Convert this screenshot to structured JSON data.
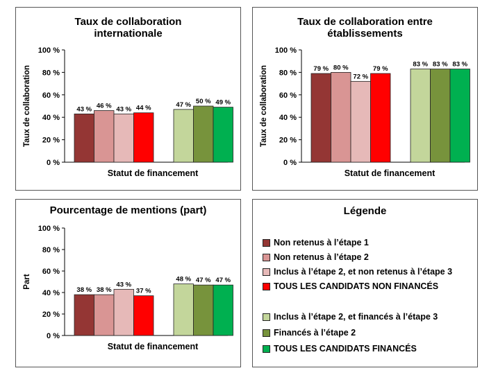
{
  "chart_data": [
    {
      "type": "bar",
      "title": "Taux de collaboration internationale",
      "title_lines": [
        "Taux de collaboration",
        "internationale"
      ],
      "xlabel": "Statut de financement",
      "ylabel": "Taux de collaboration",
      "ylim": [
        0,
        100
      ],
      "yticks": [
        "0 %",
        "20 %",
        "40 %",
        "60 %",
        "80 %",
        "100 %"
      ],
      "grid": false,
      "values": [
        43,
        46,
        43,
        44,
        47,
        50,
        49
      ],
      "data_labels": [
        "43 %",
        "46 %",
        "43 %",
        "44 %",
        "47 %",
        "50 %",
        "49 %"
      ]
    },
    {
      "type": "bar",
      "title": "Taux de collaboration entre établissements",
      "title_lines": [
        "Taux de collaboration  entre",
        "établissements"
      ],
      "xlabel": "Statut de financement",
      "ylabel": "Taux de collaboration",
      "ylim": [
        0,
        100
      ],
      "yticks": [
        "0 %",
        "20 %",
        "40 %",
        "60 %",
        "80 %",
        "100 %"
      ],
      "grid": false,
      "values": [
        79,
        80,
        72,
        79,
        83,
        83,
        83
      ],
      "data_labels": [
        "79 %",
        "80 %",
        "72 %",
        "79 %",
        "83 %",
        "83 %",
        "83 %"
      ]
    },
    {
      "type": "bar",
      "title": "Pourcentage de mentions (part)",
      "title_lines": [
        "Pourcentage de mentions (part)"
      ],
      "xlabel": "Statut de financement",
      "ylabel": "Part",
      "ylim": [
        0,
        100
      ],
      "yticks": [
        "0 %",
        "20 %",
        "40 %",
        "60 %",
        "80 %",
        "100 %"
      ],
      "grid": false,
      "values": [
        38,
        38,
        43,
        37,
        48,
        47,
        47
      ],
      "data_labels": [
        "38 %",
        "38 %",
        "43 %",
        "37 %",
        "48 %",
        "47 %",
        "47 %"
      ]
    }
  ],
  "series_colors": [
    "#943634",
    "#d99594",
    "#e6b9b8",
    "#ff0000",
    "#c3d69b",
    "#77933c",
    "#00b050"
  ],
  "legend": {
    "title": "Légende",
    "items": [
      {
        "label": "Non retenus à l’étape 1",
        "color": "#943634"
      },
      {
        "label": "Non retenus à l’étape 2",
        "color": "#d99594"
      },
      {
        "label": "Inclus à l’étape 2, et non retenus à l’étape 3",
        "color": "#e6b9b8"
      },
      {
        "label": "TOUS LES CANDIDATS NON FINANCÉS",
        "color": "#ff0000"
      },
      {
        "label": "Inclus à l’étape 2, et financés à l’étape 3",
        "color": "#c3d69b"
      },
      {
        "label": "Financés à l’étape 2",
        "color": "#77933c"
      },
      {
        "label": "TOUS LES CANDIDATS FINANCÉS",
        "color": "#00b050"
      }
    ]
  }
}
